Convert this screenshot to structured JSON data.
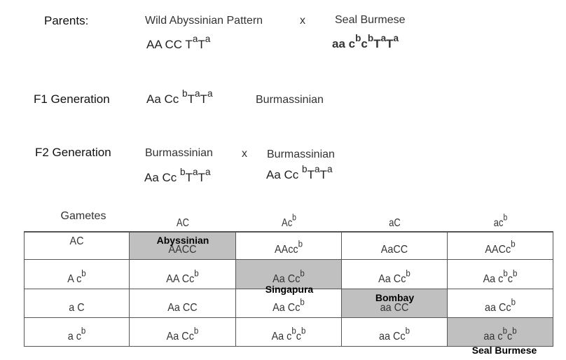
{
  "parents": {
    "label": "Parents:",
    "parent1_name": "Wild Abyssinian Pattern",
    "cross": "x",
    "parent2_name": "Seal Burmese",
    "parent1_genotype": "AA CC T{a}T{a}",
    "parent2_genotype": "aa c{b}c{b}T{a}T{a}"
  },
  "f1": {
    "label": "F1 Generation",
    "genotype": "Aa Cc {b}T{a}T{a}",
    "name": "Burmassinian"
  },
  "f2": {
    "label": "F2 Generation",
    "parent1_name": "Burmassinian",
    "cross": "x",
    "parent2_name": "Burmassinian",
    "parent1_genotype": "Aa Cc {b}T{a}T{a}",
    "parent2_genotype": "Aa Cc {b}T{a}T{a}"
  },
  "punnett": {
    "corner_label": "Gametes",
    "column_gametes": [
      "AC",
      "Ac{b}",
      "aC",
      "ac{b}"
    ],
    "row_gametes": [
      "AC",
      "A c{b}",
      "a C",
      "a c{b}"
    ],
    "cells": [
      [
        "AACC",
        "AAcc{b}",
        "AaCC",
        "AACc{b}"
      ],
      [
        "AA Cc{b}",
        "Aa Cc{b}",
        "Aa Cc{b}",
        "Aa c{b}c{b}"
      ],
      [
        "Aa CC",
        "Aa Cc{b}",
        "aa CC",
        "aa Cc{b}"
      ],
      [
        "Aa Cc{b}",
        "Aa c{b}c{b}",
        "aa Cc{b}",
        "aa c{b}c{b}"
      ]
    ],
    "shade_color": "#c0c0c0",
    "phenotypes": {
      "abyssinian": "Abyssinian",
      "singapura": "Singapura",
      "bombay": "Bombay",
      "seal_burmese": "Seal Burmese"
    }
  }
}
